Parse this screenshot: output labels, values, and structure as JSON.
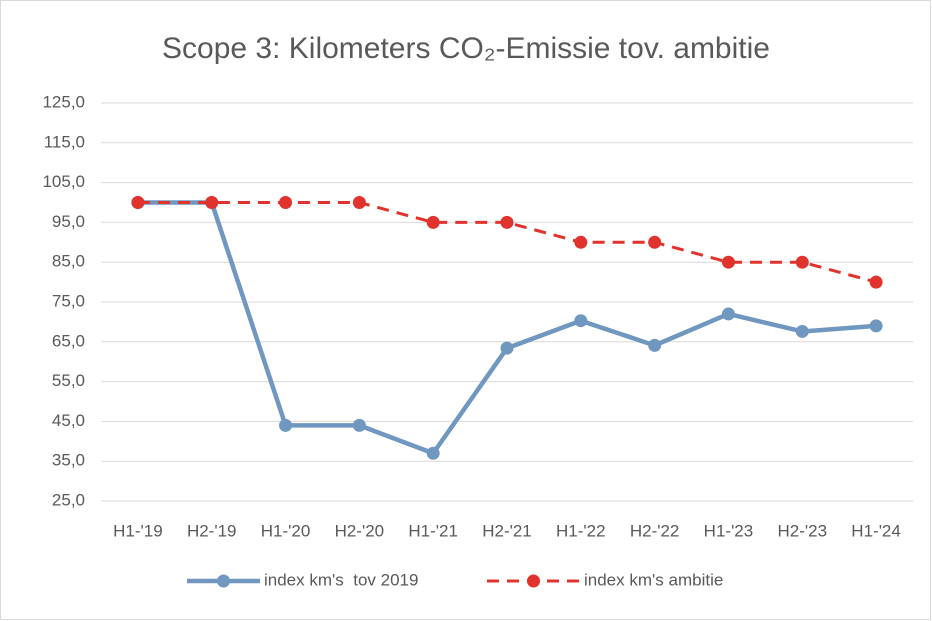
{
  "chart_data": {
    "type": "line",
    "title": "Scope 3: Kilometers CO₂-Emissie tov. ambitie",
    "categories": [
      "H1-'19",
      "H2-'19",
      "H1-'20",
      "H2-'20",
      "H1-'21",
      "H2-'21",
      "H1-'22",
      "H2-'22",
      "H1-'23",
      "H2-'23",
      "H1-'24"
    ],
    "series": [
      {
        "name": "index km's  tov 2019",
        "color": "#7097c0",
        "style": "solid",
        "values": [
          100,
          100,
          44,
          44,
          37,
          63.4,
          70.3,
          64.1,
          72,
          67.6,
          69
        ]
      },
      {
        "name": "index km's ambitie",
        "color": "#e0332e",
        "style": "dashed",
        "values": [
          100,
          100,
          100,
          100,
          95,
          95,
          90,
          90,
          85,
          85,
          80
        ]
      }
    ],
    "ylim": [
      25,
      125
    ],
    "yticks": [
      {
        "value": 25,
        "label": "25,0"
      },
      {
        "value": 35,
        "label": "35,0"
      },
      {
        "value": 45,
        "label": "45,0"
      },
      {
        "value": 55,
        "label": "55,0"
      },
      {
        "value": 65,
        "label": "65,0"
      },
      {
        "value": 75,
        "label": "75,0"
      },
      {
        "value": 85,
        "label": "85,0"
      },
      {
        "value": 95,
        "label": "95,0"
      },
      {
        "value": 105,
        "label": "105,0"
      },
      {
        "value": 115,
        "label": "115,0"
      },
      {
        "value": 125,
        "label": "125,0"
      }
    ],
    "grid": true,
    "legend": "bottom"
  }
}
